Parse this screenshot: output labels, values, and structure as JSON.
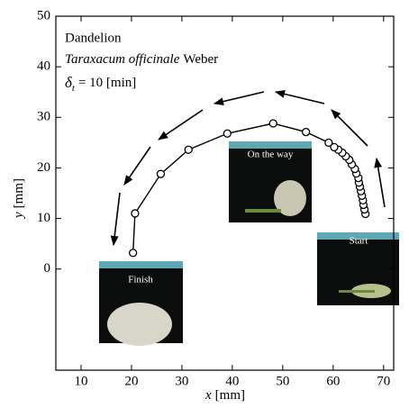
{
  "chart_data": {
    "type": "line",
    "annotations": {
      "name": "Dandelion",
      "species": "Taraxacum officinale",
      "author": "Weber",
      "delta": "δ",
      "delta_sub": "t",
      "interval": "= 10 [min]"
    },
    "x_label": {
      "symbol": "x",
      "unit": "[mm]"
    },
    "y_label": {
      "symbol": "y",
      "unit": "[mm]"
    },
    "photo_labels": {
      "start": "Start",
      "middle": "On the way",
      "finish": "Finish"
    },
    "series": [
      {
        "color": "#000000",
        "x": [
          66.4,
          66.2,
          66.0,
          65.9,
          65.7,
          65.5,
          65.3,
          65.1,
          65.0,
          64.6,
          64.3,
          63.7,
          63.2,
          62.5,
          61.8,
          61.0,
          60.2,
          59.1,
          54.6,
          48.1,
          39.0,
          31.3,
          25.8,
          20.7,
          20.3
        ],
        "values": [
          10.9,
          11.8,
          12.7,
          13.6,
          14.5,
          15.4,
          16.3,
          17.1,
          18.0,
          18.9,
          19.8,
          20.7,
          21.6,
          22.3,
          23.0,
          23.6,
          24.1,
          25.0,
          27.1,
          28.8,
          26.8,
          23.6,
          18.8,
          11.0,
          3.2
        ]
      }
    ],
    "xlim": [
      5,
      72
    ],
    "xticks": [
      10,
      20,
      30,
      40,
      50,
      60,
      70
    ],
    "ylim": [
      -20,
      50
    ],
    "yticks": [
      0,
      10,
      20,
      30,
      40,
      50
    ]
  }
}
